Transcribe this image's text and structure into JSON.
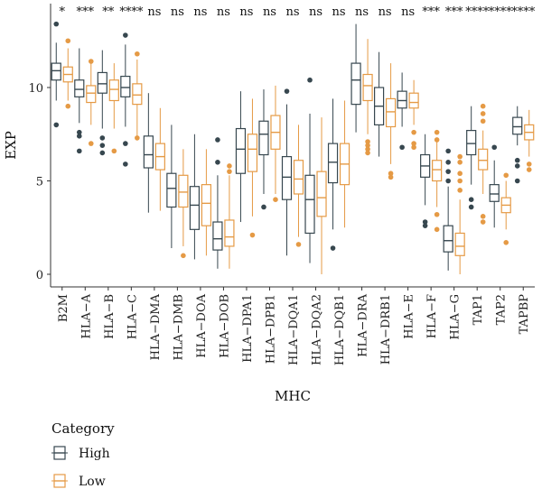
{
  "chart_data": {
    "type": "boxplot",
    "xlabel": "MHC",
    "ylabel": "EXP",
    "ylim": [
      -0.6,
      13.8
    ],
    "yticks": [
      0,
      5,
      10
    ],
    "legend": {
      "title": "Category",
      "position": "bottom-left"
    },
    "colors": {
      "High": "#37474f",
      "Low": "#e59a45"
    },
    "categories": [
      "B2M",
      "HLA−A",
      "HLA−B",
      "HLA−C",
      "HLA−DMA",
      "HLA−DMB",
      "HLA−DOA",
      "HLA−DOB",
      "HLA−DPA1",
      "HLA−DPB1",
      "HLA−DQA1",
      "HLA−DQA2",
      "HLA−DQB1",
      "HLA−DRA",
      "HLA−DRB1",
      "HLA−E",
      "HLA−F",
      "HLA−G",
      "TAP1",
      "TAP2",
      "TAPBP"
    ],
    "significance": [
      "*",
      "***",
      "**",
      "****",
      "ns",
      "ns",
      "ns",
      "ns",
      "ns",
      "ns",
      "ns",
      "ns",
      "ns",
      "ns",
      "ns",
      "ns",
      "***",
      "***",
      "****",
      "****",
      "****"
    ],
    "series": [
      {
        "name": "High",
        "boxes": [
          {
            "min": 9.3,
            "q1": 10.4,
            "median": 10.9,
            "q3": 11.3,
            "max": 12.4,
            "outliers": [
              13.4,
              8.0
            ]
          },
          {
            "min": 8.1,
            "q1": 9.5,
            "median": 9.9,
            "q3": 10.4,
            "max": 12.1,
            "outliers": [
              7.6,
              7.4,
              6.6
            ]
          },
          {
            "min": 7.8,
            "q1": 9.7,
            "median": 10.2,
            "q3": 10.8,
            "max": 12.0,
            "outliers": [
              7.3,
              6.9,
              6.5
            ]
          },
          {
            "min": 7.9,
            "q1": 9.5,
            "median": 10.0,
            "q3": 10.6,
            "max": 12.3,
            "outliers": [
              12.8,
              7.0,
              5.9
            ]
          },
          {
            "min": 3.3,
            "q1": 5.7,
            "median": 6.4,
            "q3": 7.4,
            "max": 9.7,
            "outliers": []
          },
          {
            "min": 1.4,
            "q1": 3.6,
            "median": 4.6,
            "q3": 5.4,
            "max": 8.0,
            "outliers": []
          },
          {
            "min": 0.8,
            "q1": 2.4,
            "median": 3.7,
            "q3": 4.7,
            "max": 7.5,
            "outliers": []
          },
          {
            "min": 0.3,
            "q1": 1.3,
            "median": 1.9,
            "q3": 2.8,
            "max": 5.3,
            "outliers": [
              7.2,
              6.0
            ]
          },
          {
            "min": 2.8,
            "q1": 5.4,
            "median": 6.7,
            "q3": 7.8,
            "max": 9.8,
            "outliers": []
          },
          {
            "min": 4.3,
            "q1": 6.4,
            "median": 7.5,
            "q3": 8.2,
            "max": 9.9,
            "outliers": [
              3.6
            ]
          },
          {
            "min": 1.0,
            "q1": 4.0,
            "median": 5.2,
            "q3": 6.3,
            "max": 9.1,
            "outliers": [
              9.8
            ]
          },
          {
            "min": 0.6,
            "q1": 2.2,
            "median": 4.0,
            "q3": 5.3,
            "max": 8.6,
            "outliers": [
              10.4
            ]
          },
          {
            "min": 2.4,
            "q1": 4.9,
            "median": 6.0,
            "q3": 7.0,
            "max": 9.4,
            "outliers": [
              1.4
            ]
          },
          {
            "min": 7.6,
            "q1": 9.1,
            "median": 10.4,
            "q3": 11.3,
            "max": 13.4,
            "outliers": []
          },
          {
            "min": 6.3,
            "q1": 8.0,
            "median": 9.0,
            "q3": 10.0,
            "max": 11.9,
            "outliers": []
          },
          {
            "min": 7.9,
            "q1": 8.9,
            "median": 9.3,
            "q3": 9.8,
            "max": 10.8,
            "outliers": [
              6.8
            ]
          },
          {
            "min": 3.7,
            "q1": 5.2,
            "median": 5.8,
            "q3": 6.4,
            "max": 7.5,
            "outliers": [
              2.8,
              2.6
            ]
          },
          {
            "min": 0.2,
            "q1": 1.2,
            "median": 1.8,
            "q3": 2.6,
            "max": 4.7,
            "outliers": [
              5.0,
              5.5,
              6.0,
              6.6
            ]
          },
          {
            "min": 4.8,
            "q1": 6.4,
            "median": 7.0,
            "q3": 7.7,
            "max": 9.0,
            "outliers": [
              4.0,
              3.6
            ]
          },
          {
            "min": 2.5,
            "q1": 3.9,
            "median": 4.3,
            "q3": 4.8,
            "max": 6.1,
            "outliers": [
              6.8
            ]
          },
          {
            "min": 6.9,
            "q1": 7.5,
            "median": 7.9,
            "q3": 8.4,
            "max": 9.0,
            "outliers": [
              6.1,
              5.8,
              5.0
            ]
          }
        ]
      },
      {
        "name": "Low",
        "boxes": [
          {
            "min": 9.3,
            "q1": 10.3,
            "median": 10.7,
            "q3": 11.1,
            "max": 12.1,
            "outliers": [
              12.5,
              9.0
            ]
          },
          {
            "min": 8.0,
            "q1": 9.2,
            "median": 9.7,
            "q3": 10.1,
            "max": 11.3,
            "outliers": [
              11.4,
              7.0
            ]
          },
          {
            "min": 7.8,
            "q1": 9.3,
            "median": 9.9,
            "q3": 10.4,
            "max": 11.3,
            "outliers": [
              6.6
            ]
          },
          {
            "min": 7.4,
            "q1": 9.1,
            "median": 9.6,
            "q3": 10.2,
            "max": 11.5,
            "outliers": [
              11.8,
              7.3
            ]
          },
          {
            "min": 3.4,
            "q1": 5.6,
            "median": 6.3,
            "q3": 7.0,
            "max": 8.9,
            "outliers": []
          },
          {
            "min": 1.5,
            "q1": 3.6,
            "median": 4.4,
            "q3": 5.3,
            "max": 6.7,
            "outliers": [
              1.0
            ]
          },
          {
            "min": 1.0,
            "q1": 2.6,
            "median": 3.8,
            "q3": 4.8,
            "max": 6.7,
            "outliers": []
          },
          {
            "min": 0.3,
            "q1": 1.5,
            "median": 2.0,
            "q3": 2.9,
            "max": 5.3,
            "outliers": [
              5.8,
              5.5
            ]
          },
          {
            "min": 3.1,
            "q1": 5.5,
            "median": 6.7,
            "q3": 7.5,
            "max": 9.4,
            "outliers": [
              2.1
            ]
          },
          {
            "min": 4.3,
            "q1": 6.7,
            "median": 7.6,
            "q3": 8.5,
            "max": 10.1,
            "outliers": [
              4.0
            ]
          },
          {
            "min": 2.0,
            "q1": 4.3,
            "median": 5.1,
            "q3": 6.1,
            "max": 8.0,
            "outliers": [
              1.6
            ]
          },
          {
            "min": 0.0,
            "q1": 3.1,
            "median": 4.1,
            "q3": 5.5,
            "max": 8.4,
            "outliers": []
          },
          {
            "min": 2.5,
            "q1": 4.8,
            "median": 5.9,
            "q3": 7.0,
            "max": 9.3,
            "outliers": []
          },
          {
            "min": 7.5,
            "q1": 9.3,
            "median": 10.1,
            "q3": 10.7,
            "max": 12.6,
            "outliers": [
              7.1,
              6.9,
              6.7,
              6.5
            ]
          },
          {
            "min": 5.9,
            "q1": 7.9,
            "median": 8.7,
            "q3": 9.4,
            "max": 11.3,
            "outliers": [
              5.4,
              5.2
            ]
          },
          {
            "min": 8.0,
            "q1": 8.9,
            "median": 9.2,
            "q3": 9.7,
            "max": 10.4,
            "outliers": [
              7.6,
              7.0,
              6.8
            ]
          },
          {
            "min": 3.6,
            "q1": 5.0,
            "median": 5.6,
            "q3": 6.1,
            "max": 7.1,
            "outliers": [
              7.6,
              7.2,
              3.2,
              2.4
            ]
          },
          {
            "min": 0.0,
            "q1": 1.0,
            "median": 1.5,
            "q3": 2.2,
            "max": 4.0,
            "outliers": [
              4.5,
              5.0,
              5.4,
              6.0,
              6.3
            ]
          },
          {
            "min": 4.3,
            "q1": 5.6,
            "median": 6.1,
            "q3": 6.7,
            "max": 7.7,
            "outliers": [
              9.0,
              8.6,
              8.2,
              3.1,
              2.8
            ]
          },
          {
            "min": 2.4,
            "q1": 3.3,
            "median": 3.7,
            "q3": 4.1,
            "max": 5.0,
            "outliers": [
              5.3,
              1.7
            ]
          },
          {
            "min": 6.3,
            "q1": 7.2,
            "median": 7.6,
            "q3": 8.0,
            "max": 8.8,
            "outliers": [
              5.9,
              5.6
            ]
          }
        ]
      }
    ]
  }
}
